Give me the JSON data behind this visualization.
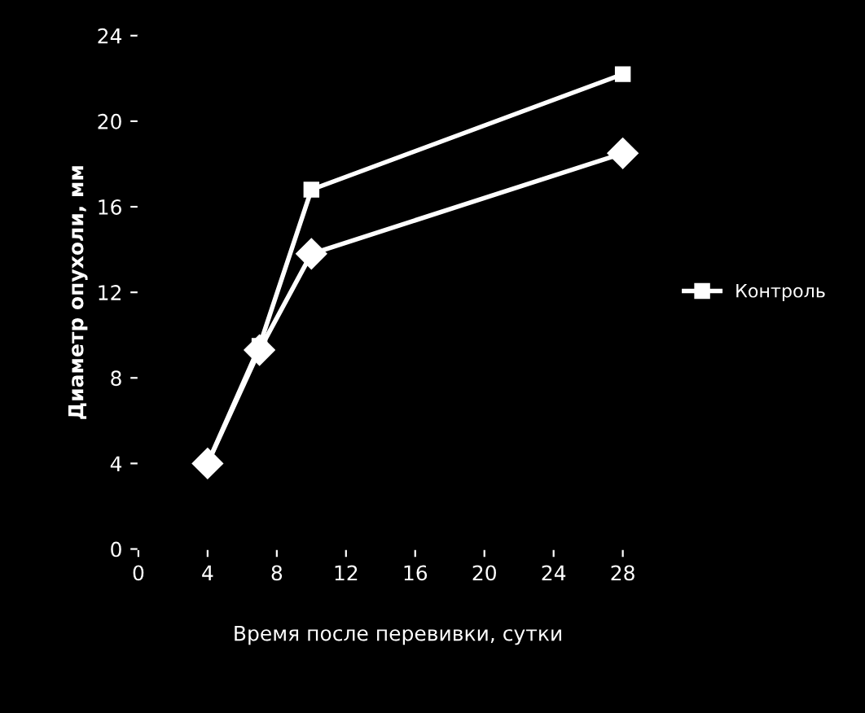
{
  "chart_data": {
    "type": "line",
    "xlabel": "Время после перевивки, сутки",
    "ylabel": "Диаметр опухоли, мм",
    "series": [
      {
        "color": "#ffffff",
        "marker": "diamond",
        "x": [
          4,
          7,
          10,
          28
        ],
        "values": [
          4,
          9.3,
          13.8,
          18.5
        ]
      },
      {
        "name": "Контроль",
        "color": "#ffffff",
        "marker": "square",
        "x": [
          4,
          7,
          10,
          28
        ],
        "values": [
          4,
          9.5,
          16.8,
          22.2
        ]
      }
    ],
    "xlim": [
      0,
      30
    ],
    "xticks": [
      0,
      4,
      8,
      12,
      16,
      20,
      24,
      28
    ],
    "ylim": [
      0,
      24
    ],
    "yticks": [
      0,
      4,
      8,
      12,
      16,
      20,
      24
    ],
    "grid": false,
    "legend": "right",
    "line_style": "solid"
  }
}
